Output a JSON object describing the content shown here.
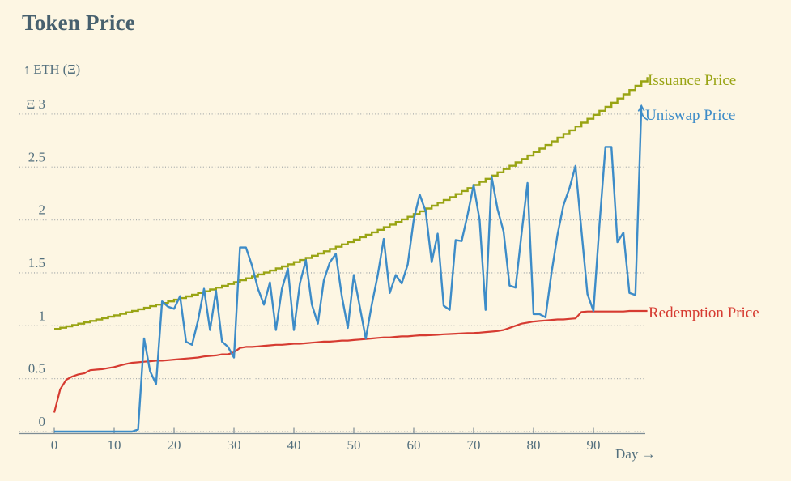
{
  "title": "Token Price",
  "chart_data": {
    "type": "line",
    "title": "Token Price",
    "x_axis": {
      "label": "Day →",
      "ticks": [
        0,
        10,
        20,
        30,
        40,
        50,
        60,
        70,
        80,
        90
      ],
      "range": [
        0,
        100
      ]
    },
    "y_axis": {
      "label": "↑ ETH (Ξ)",
      "tick_values": [
        0,
        0.5,
        1,
        1.5,
        2,
        2.5,
        3
      ],
      "tick_labels": [
        "0",
        "0.5",
        "1",
        "1.5",
        "2",
        "2.5",
        "Ξ 3"
      ],
      "range": [
        0,
        3.45
      ]
    },
    "grid": true,
    "legend_position": "right-end-annotations",
    "series": [
      {
        "name": "Issuance Price",
        "color": "#99a414",
        "style": "step",
        "start_day": 0,
        "values": [
          0.97,
          0.982,
          0.995,
          1.007,
          1.02,
          1.033,
          1.046,
          1.059,
          1.072,
          1.086,
          1.099,
          1.113,
          1.127,
          1.141,
          1.156,
          1.17,
          1.185,
          1.2,
          1.215,
          1.23,
          1.246,
          1.262,
          1.278,
          1.294,
          1.31,
          1.326,
          1.343,
          1.36,
          1.377,
          1.395,
          1.412,
          1.43,
          1.448,
          1.466,
          1.485,
          1.503,
          1.522,
          1.542,
          1.561,
          1.581,
          1.601,
          1.621,
          1.641,
          1.662,
          1.683,
          1.704,
          1.725,
          1.747,
          1.769,
          1.791,
          1.814,
          1.837,
          1.86,
          1.883,
          1.907,
          1.931,
          1.956,
          1.98,
          2.005,
          2.03,
          2.056,
          2.082,
          2.108,
          2.135,
          2.162,
          2.189,
          2.216,
          2.244,
          2.273,
          2.301,
          2.33,
          2.36,
          2.389,
          2.419,
          2.45,
          2.481,
          2.512,
          2.544,
          2.576,
          2.608,
          2.641,
          2.674,
          2.708,
          2.742,
          2.777,
          2.812,
          2.847,
          2.883,
          2.919,
          2.956,
          2.993,
          3.031,
          3.069,
          3.108,
          3.147,
          3.187,
          3.227,
          3.268,
          3.309,
          3.35
        ]
      },
      {
        "name": "Uniswap Price",
        "color": "#3d8cc8",
        "style": "linear",
        "start_day": 0,
        "values": [
          0,
          0,
          0,
          0,
          0,
          0,
          0,
          0,
          0,
          0,
          0,
          0,
          0,
          0,
          0.02,
          0.88,
          0.57,
          0.45,
          1.23,
          1.18,
          1.16,
          1.28,
          0.85,
          0.82,
          1.05,
          1.35,
          0.96,
          1.33,
          0.85,
          0.8,
          0.7,
          1.74,
          1.74,
          1.57,
          1.35,
          1.2,
          1.41,
          0.96,
          1.35,
          1.54,
          0.96,
          1.4,
          1.62,
          1.2,
          1.02,
          1.43,
          1.6,
          1.68,
          1.28,
          0.98,
          1.48,
          1.18,
          0.88,
          1.2,
          1.48,
          1.82,
          1.31,
          1.48,
          1.4,
          1.58,
          2.0,
          2.24,
          2.08,
          1.6,
          1.87,
          1.19,
          1.15,
          1.81,
          1.8,
          2.05,
          2.33,
          2.0,
          1.15,
          2.41,
          2.1,
          1.89,
          1.38,
          1.36,
          1.87,
          2.35,
          1.11,
          1.11,
          1.08,
          1.5,
          1.86,
          2.14,
          2.3,
          2.51,
          1.9,
          1.3,
          1.14,
          1.95,
          2.69,
          2.69,
          1.79,
          1.88,
          1.31,
          1.29,
          3.08
        ]
      },
      {
        "name": "Redemption Price",
        "color": "#d63b31",
        "style": "linear",
        "start_day": 0,
        "values": [
          0.18,
          0.4,
          0.49,
          0.52,
          0.54,
          0.55,
          0.58,
          0.585,
          0.59,
          0.6,
          0.61,
          0.625,
          0.64,
          0.65,
          0.655,
          0.66,
          0.665,
          0.67,
          0.67,
          0.675,
          0.68,
          0.685,
          0.69,
          0.695,
          0.7,
          0.71,
          0.715,
          0.72,
          0.73,
          0.73,
          0.75,
          0.79,
          0.8,
          0.8,
          0.805,
          0.81,
          0.815,
          0.82,
          0.82,
          0.825,
          0.83,
          0.83,
          0.835,
          0.84,
          0.845,
          0.85,
          0.85,
          0.855,
          0.86,
          0.86,
          0.865,
          0.87,
          0.875,
          0.88,
          0.885,
          0.89,
          0.89,
          0.895,
          0.9,
          0.9,
          0.905,
          0.91,
          0.91,
          0.912,
          0.915,
          0.92,
          0.922,
          0.925,
          0.928,
          0.93,
          0.932,
          0.935,
          0.94,
          0.945,
          0.95,
          0.96,
          0.98,
          1.0,
          1.02,
          1.03,
          1.04,
          1.045,
          1.05,
          1.055,
          1.06,
          1.06,
          1.065,
          1.07,
          1.13,
          1.135,
          1.135,
          1.135,
          1.135,
          1.135,
          1.135,
          1.135,
          1.14,
          1.14,
          1.14,
          1.14
        ]
      }
    ],
    "colors": {
      "background": "#fdf6e3",
      "text": "#54707e",
      "title_text": "#47606e",
      "grid": "#9aa0a3",
      "axis": "#7d8c94"
    }
  }
}
